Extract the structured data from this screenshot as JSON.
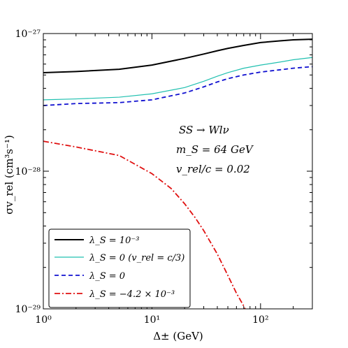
{
  "chart_data": {
    "type": "line",
    "xscale": "log",
    "yscale": "log",
    "xlim": [
      1,
      300
    ],
    "ylim": [
      1e-29,
      1e-27
    ],
    "xlabel": "Δ± (GeV)",
    "ylabel": "σv_rel (cm³s⁻¹)",
    "x_ticks": [
      {
        "value": 1,
        "label": "10⁰"
      },
      {
        "value": 10,
        "label": "10¹"
      },
      {
        "value": 100,
        "label": "10²"
      }
    ],
    "y_ticks": [
      {
        "value": 1e-29,
        "label": "10⁻²⁹"
      },
      {
        "value": 1e-28,
        "label": "10⁻²⁸"
      },
      {
        "value": 1e-27,
        "label": "10⁻²⁷"
      }
    ],
    "annotations": [
      "SS → Wlν",
      "m_S = 64 GeV",
      "v_rel/c = 0.02"
    ],
    "legend_position": "lower-left",
    "grid": false,
    "series": [
      {
        "name": "λ_S = 10⁻³",
        "color": "#000000",
        "dash": "solid",
        "x": [
          1,
          2,
          5,
          10,
          20,
          30,
          40,
          50,
          70,
          100,
          150,
          200,
          300
        ],
        "y": [
          5.2e-28,
          5.3e-28,
          5.5e-28,
          5.9e-28,
          6.6e-28,
          7.1e-28,
          7.5e-28,
          7.8e-28,
          8.2e-28,
          8.6e-28,
          8.85e-28,
          9e-28,
          9.1e-28
        ]
      },
      {
        "name": "λ_S = 0 (v_rel = c/3)",
        "color": "#20c0b0",
        "dash": "solid",
        "x": [
          1,
          2,
          5,
          10,
          20,
          30,
          40,
          50,
          70,
          100,
          150,
          200,
          300
        ],
        "y": [
          3.3e-28,
          3.35e-28,
          3.45e-28,
          3.65e-28,
          4.05e-28,
          4.5e-28,
          4.9e-28,
          5.2e-28,
          5.6e-28,
          5.9e-28,
          6.2e-28,
          6.45e-28,
          6.7e-28
        ]
      },
      {
        "name": "λ_S = 0",
        "color": "#1010d0",
        "dash": "dashed",
        "x": [
          1,
          2,
          5,
          10,
          20,
          30,
          40,
          50,
          70,
          100,
          150,
          200,
          300
        ],
        "y": [
          3e-28,
          3.1e-28,
          3.15e-28,
          3.3e-28,
          3.7e-28,
          4.1e-28,
          4.45e-28,
          4.7e-28,
          5e-28,
          5.25e-28,
          5.45e-28,
          5.6e-28,
          5.75e-28
        ]
      },
      {
        "name": "λ_S = −4.2 × 10⁻³",
        "color": "#e01010",
        "dash": "dashdot",
        "x": [
          1,
          2,
          5,
          10,
          15,
          20,
          25,
          30,
          40,
          50,
          60,
          70,
          72
        ],
        "y": [
          1.65e-28,
          1.5e-28,
          1.3e-28,
          9.6e-29,
          7.5e-29,
          5.8e-29,
          4.6e-29,
          3.7e-29,
          2.5e-29,
          1.75e-29,
          1.3e-29,
          1.05e-29,
          1e-29
        ]
      }
    ]
  }
}
